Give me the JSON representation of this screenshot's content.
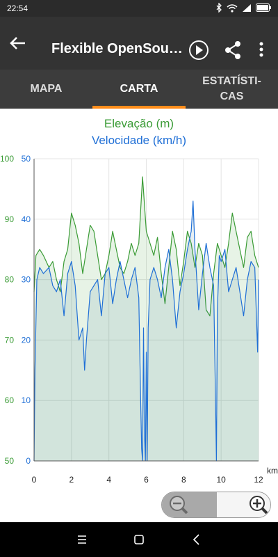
{
  "status": {
    "time": "22:54"
  },
  "appbar": {
    "title": "Flexible OpenSou…"
  },
  "tabs": [
    {
      "label": "MAPA",
      "active": false
    },
    {
      "label": "CARTA",
      "active": true
    },
    {
      "label": "ESTATÍSTI-\nCAS",
      "active": false
    }
  ],
  "legend": {
    "elevation": "Elevação (m)",
    "speed": "Velocidade (km/h)"
  },
  "colors": {
    "elevation": "#3a9b35",
    "speed": "#1f6fd6",
    "accent": "#ff8c1a"
  },
  "chart_data": {
    "type": "line",
    "x_unit": "km",
    "xlim": [
      0,
      12
    ],
    "x_ticks": [
      "0",
      "2",
      "4",
      "6",
      "8",
      "10",
      "12"
    ],
    "y_left_ticks": [
      "50",
      "60",
      "70",
      "80",
      "90",
      "100"
    ],
    "y_right_ticks": [
      "0",
      "10",
      "20",
      "30",
      "40",
      "50"
    ],
    "series": [
      {
        "name": "Elevação (m)",
        "axis": "left",
        "ylim": [
          50,
          100
        ],
        "x": [
          0,
          0.1,
          0.3,
          0.5,
          0.8,
          1.0,
          1.2,
          1.4,
          1.6,
          1.8,
          2.0,
          2.2,
          2.4,
          2.6,
          2.8,
          3.0,
          3.2,
          3.4,
          3.6,
          3.8,
          4.0,
          4.2,
          4.4,
          4.6,
          4.8,
          5.0,
          5.2,
          5.4,
          5.6,
          5.8,
          6.0,
          6.2,
          6.4,
          6.6,
          6.8,
          7.0,
          7.2,
          7.4,
          7.6,
          7.8,
          8.0,
          8.2,
          8.4,
          8.6,
          8.8,
          9.0,
          9.2,
          9.4,
          9.6,
          9.8,
          10.0,
          10.2,
          10.4,
          10.6,
          10.8,
          11.0,
          11.2,
          11.4,
          11.6,
          11.8,
          12.0
        ],
        "y": [
          78,
          84,
          85,
          84,
          82,
          83,
          80,
          78,
          83,
          85,
          91,
          89,
          86,
          81,
          85,
          89,
          88,
          84,
          80,
          81,
          84,
          88,
          85,
          82,
          81,
          83,
          86,
          84,
          86,
          97,
          88,
          86,
          84,
          87,
          81,
          76,
          82,
          88,
          85,
          79,
          83,
          88,
          86,
          82,
          86,
          84,
          75,
          74,
          81,
          86,
          84,
          82,
          86,
          91,
          88,
          85,
          82,
          87,
          88,
          84,
          82
        ]
      },
      {
        "name": "Velocidade (km/h)",
        "axis": "right",
        "ylim": [
          0,
          50
        ],
        "x": [
          0,
          0.05,
          0.15,
          0.3,
          0.5,
          0.8,
          1.0,
          1.2,
          1.4,
          1.6,
          1.8,
          2.0,
          2.2,
          2.4,
          2.6,
          2.7,
          2.8,
          3.0,
          3.2,
          3.4,
          3.6,
          3.8,
          4.0,
          4.2,
          4.4,
          4.6,
          4.8,
          5.0,
          5.2,
          5.4,
          5.6,
          5.7,
          5.75,
          5.8,
          5.85,
          5.9,
          5.95,
          6.0,
          6.05,
          6.1,
          6.2,
          6.4,
          6.6,
          6.8,
          7.0,
          7.2,
          7.4,
          7.6,
          7.8,
          8.0,
          8.2,
          8.4,
          8.5,
          8.6,
          8.8,
          9.0,
          9.2,
          9.4,
          9.6,
          9.7,
          9.75,
          9.8,
          9.9,
          10.0,
          10.2,
          10.4,
          10.6,
          10.8,
          11.0,
          11.2,
          11.4,
          11.6,
          11.8,
          11.95,
          12.0
        ],
        "y": [
          0,
          15,
          30,
          32,
          31,
          32,
          29,
          28,
          30,
          24,
          31,
          33,
          29,
          20,
          22,
          15,
          20,
          28,
          29,
          30,
          24,
          31,
          32,
          26,
          30,
          33,
          30,
          27,
          30,
          32,
          27,
          10,
          2,
          0,
          22,
          5,
          0,
          18,
          0,
          22,
          30,
          32,
          30,
          27,
          32,
          35,
          30,
          22,
          28,
          31,
          35,
          38,
          43,
          35,
          25,
          31,
          36,
          32,
          29,
          10,
          0,
          25,
          34,
          33,
          35,
          28,
          30,
          32,
          28,
          24,
          30,
          33,
          32,
          18,
          30
        ]
      }
    ]
  }
}
